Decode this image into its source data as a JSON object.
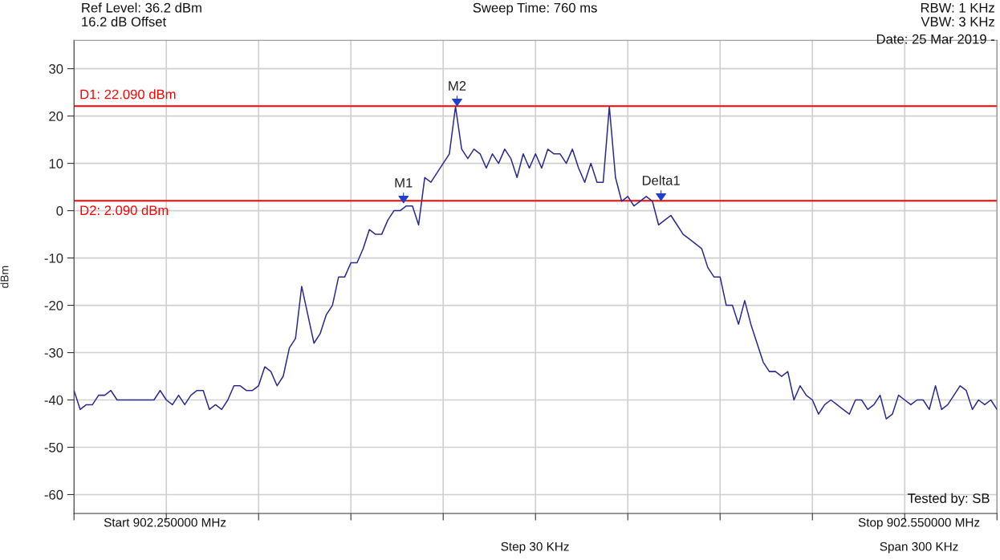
{
  "chart_data": {
    "type": "line",
    "ylabel": "dBm",
    "categories": [
      null,
      null,
      null,
      null,
      null,
      null,
      null,
      null,
      null,
      null,
      null,
      null,
      null,
      null,
      null,
      null,
      null,
      null,
      null,
      null,
      null,
      null,
      null,
      null,
      null,
      null,
      null,
      null,
      null,
      null,
      null,
      null,
      null,
      null,
      null,
      null,
      null,
      null,
      null,
      null,
      null,
      null,
      null,
      null,
      null,
      null,
      null,
      null,
      null,
      null,
      null,
      null,
      null,
      null,
      null,
      null,
      null,
      null,
      null,
      null,
      null,
      null,
      null,
      null,
      null,
      null,
      null,
      null,
      null,
      null,
      null,
      null,
      null,
      null,
      null,
      null,
      null,
      null,
      null,
      null,
      null,
      null,
      null,
      null,
      null,
      null,
      null,
      null,
      null,
      null,
      null,
      null,
      null,
      null,
      null,
      null,
      null,
      null,
      null,
      null,
      null,
      null,
      null,
      null,
      null,
      null,
      null,
      null,
      null,
      null,
      null,
      null,
      null,
      null,
      null,
      null,
      null,
      null,
      null,
      null,
      null,
      null,
      null,
      null,
      null,
      null,
      null,
      null,
      null,
      null,
      null,
      null,
      null,
      null,
      null,
      null,
      null,
      null,
      null,
      null,
      null,
      null,
      null,
      null,
      null,
      null,
      null,
      null,
      null,
      null,
      null
    ],
    "series": [
      {
        "color": "#2b2b8f",
        "values": [
          -38,
          -42,
          -41,
          -41,
          -39,
          -39,
          -38,
          -40,
          -40,
          -40,
          -40,
          -40,
          -40,
          -40,
          -38,
          -40,
          -41,
          -39,
          -41,
          -39,
          -38,
          -38,
          -42,
          -41,
          -42,
          -40,
          -37,
          -37,
          -38,
          -38,
          -37,
          -33,
          -34,
          -37,
          -35,
          -29,
          -27,
          -16,
          -22,
          -28,
          -26,
          -22,
          -20,
          -14,
          -14,
          -11,
          -11,
          -8,
          -4,
          -5,
          -5,
          -2,
          0,
          0,
          1,
          1,
          -3,
          7,
          6,
          8,
          10,
          12,
          22,
          13,
          11,
          13,
          12,
          9,
          12,
          10,
          13,
          11,
          7,
          12,
          9,
          12,
          9,
          13,
          12,
          12,
          10,
          13,
          9,
          6,
          10,
          6,
          6,
          22,
          7,
          2,
          3,
          1,
          2,
          3,
          2,
          -3,
          -2,
          -1,
          -3,
          -5,
          -6,
          -7,
          -8,
          -12,
          -14,
          -14,
          -20,
          -20,
          -24,
          -19,
          -24,
          -28,
          -32,
          -34,
          -34,
          -35,
          -34,
          -40,
          -37,
          -39,
          -40,
          -43,
          -41,
          -40,
          -41,
          -42,
          -43,
          -40,
          -40,
          -42,
          -41,
          -39,
          -44,
          -43,
          -39,
          -40,
          -41,
          -40,
          -40,
          -42,
          -37,
          -42,
          -41,
          -39,
          -37,
          -38,
          -42,
          -40,
          -41,
          -40,
          -42
        ]
      }
    ],
    "ylim": [
      -64,
      36
    ],
    "yticks": [
      -60,
      -50,
      -40,
      -30,
      -20,
      -10,
      0,
      10,
      20,
      30
    ],
    "grid": true,
    "ref_lines": [
      {
        "axis": "y",
        "value": 22.09,
        "label": "D1: 22.090 dBm",
        "color": "#ff0000"
      },
      {
        "axis": "y",
        "value": 2.09,
        "label": "D2: 2.090 dBm",
        "color": "#ff0000"
      }
    ],
    "annotations": [
      "Ref Level: 36.2 dBm",
      "16.2 dB Offset",
      "Sweep Time: 760 ms",
      "RBW: 1 KHz",
      "VBW: 3 KHz",
      "Date: 25 Mar 2019 -",
      "Tested by: SB",
      "Start 902.250000 MHz",
      "Stop 902.550000 MHz",
      "Step 30 KHz",
      "Span 300 KHz",
      "M1",
      "M2",
      "Delta1"
    ]
  }
}
